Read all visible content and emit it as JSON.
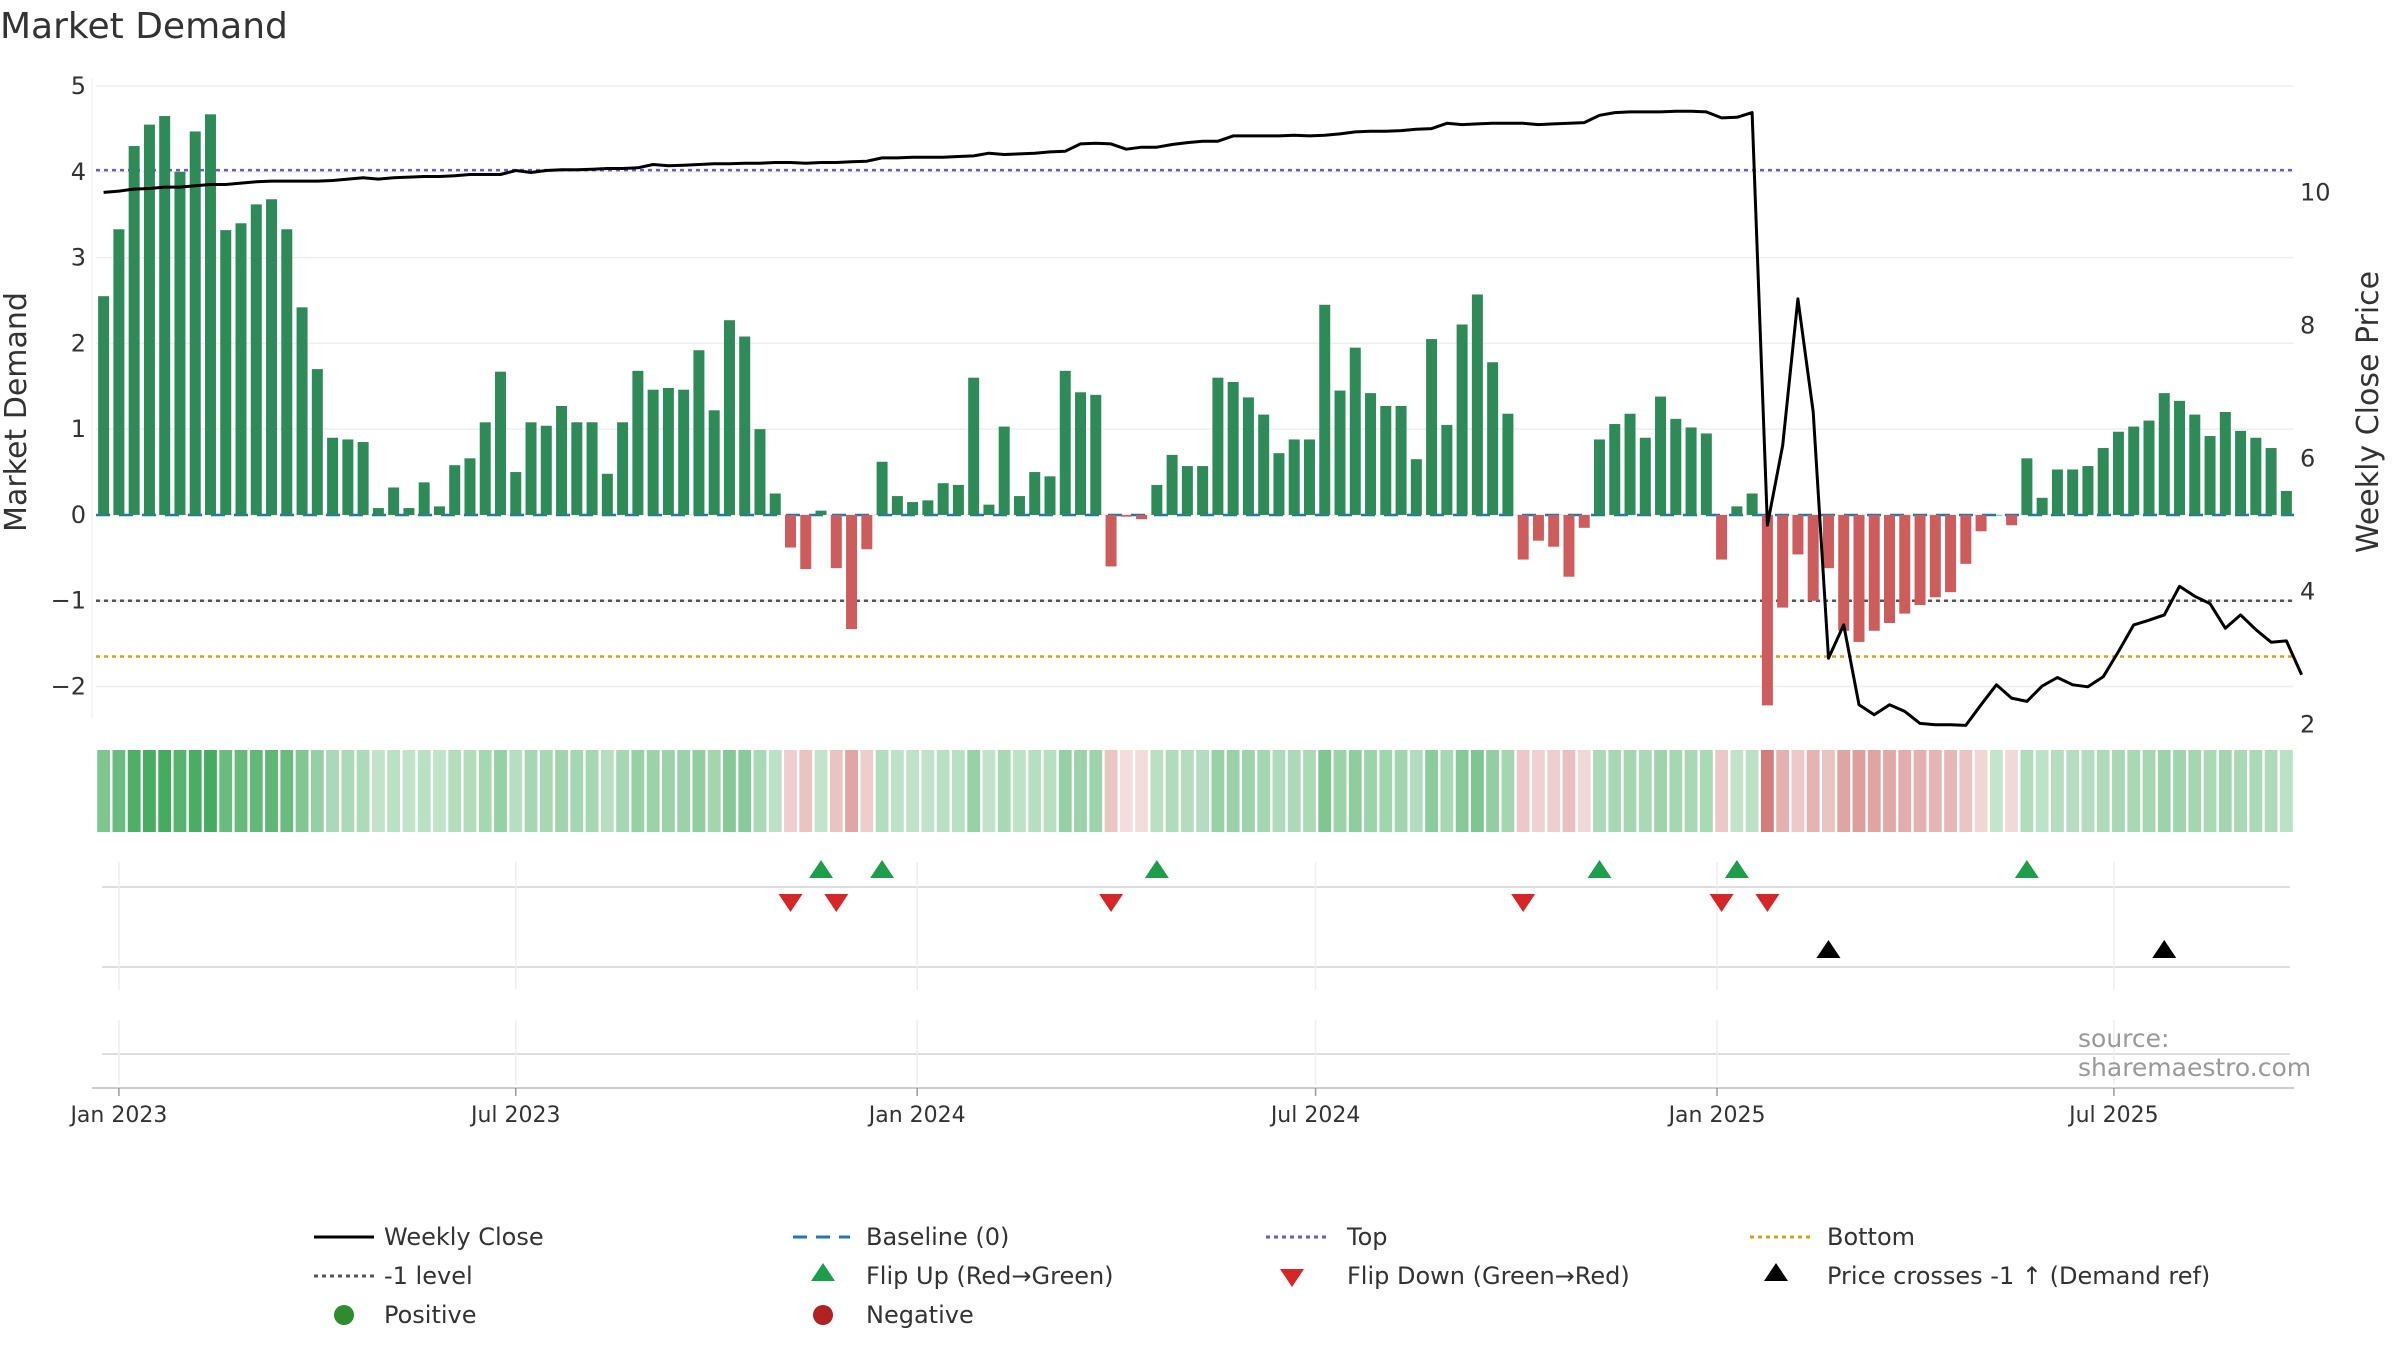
{
  "title": "Market Demand",
  "source": "source: sharemaestro.com",
  "colors": {
    "positive": "#2e8b57",
    "negative": "#cd5c5c",
    "price": "#000000",
    "baseline": "#1f77b4",
    "top": "#6a5acd",
    "minus1": "#555555",
    "bottom": "#d4a017",
    "flip_up": "#1e9e4a",
    "flip_down": "#d62728",
    "cross": "#000000"
  },
  "chart_data": {
    "type": "bar",
    "ylabel": "Market Demand",
    "y2label": "Weekly Close Price",
    "ylim": [
      -2.6,
      5.0
    ],
    "y2lim": [
      1.8,
      11.6
    ],
    "yticks": [
      "5",
      "4",
      "3",
      "2",
      "1",
      "0",
      "−1",
      "−2"
    ],
    "ytick_values": [
      5,
      4,
      3,
      2,
      1,
      0,
      -1,
      -2
    ],
    "y2ticks": [
      "10",
      "8",
      "6",
      "4",
      "2"
    ],
    "y2tick_values": [
      10,
      8,
      6,
      4,
      2
    ],
    "xticks": [
      "Jan 2023",
      "Jul 2023",
      "Jan 2024",
      "Jul 2024",
      "Jan 2025",
      "Jul 2025"
    ],
    "xtick_positions": [
      1.5,
      27.5,
      53.8,
      79.9,
      106.2,
      132.2
    ],
    "levels": {
      "top": 4.02,
      "minus1": -1.0,
      "bottom": -1.65,
      "baseline": 0
    },
    "demand": [
      2.55,
      3.33,
      4.3,
      4.55,
      4.65,
      4.0,
      4.47,
      4.67,
      3.32,
      3.4,
      3.62,
      3.68,
      3.33,
      2.42,
      1.7,
      0.9,
      0.88,
      0.85,
      0.08,
      0.32,
      0.08,
      0.38,
      0.1,
      0.58,
      0.66,
      1.08,
      1.67,
      0.5,
      1.08,
      1.04,
      1.27,
      1.08,
      1.08,
      0.48,
      1.08,
      1.68,
      1.46,
      1.48,
      1.46,
      1.92,
      1.22,
      2.27,
      2.08,
      1.0,
      0.25,
      -0.38,
      -0.63,
      0.05,
      -0.62,
      -1.33,
      -0.4,
      0.62,
      0.22,
      0.15,
      0.17,
      0.37,
      0.35,
      1.6,
      0.12,
      1.03,
      0.22,
      0.5,
      0.45,
      1.68,
      1.43,
      1.4,
      -0.6,
      -0.02,
      -0.05,
      0.35,
      0.7,
      0.57,
      0.57,
      1.6,
      1.55,
      1.37,
      1.17,
      0.72,
      0.88,
      0.88,
      2.45,
      1.45,
      1.95,
      1.42,
      1.27,
      1.27,
      0.65,
      2.05,
      1.05,
      2.22,
      2.57,
      1.78,
      1.18,
      -0.52,
      -0.3,
      -0.37,
      -0.72,
      -0.15,
      0.88,
      1.06,
      1.18,
      0.9,
      1.38,
      1.12,
      1.02,
      0.95,
      -0.52,
      0.1,
      0.25,
      -2.22,
      -1.08,
      -0.46,
      -1.0,
      -0.62,
      -1.35,
      -1.48,
      -1.35,
      -1.26,
      -1.15,
      -1.05,
      -0.96,
      -0.9,
      -0.57,
      -0.19,
      0.0,
      -0.12,
      0.66,
      0.2,
      0.53,
      0.53,
      0.57,
      0.78,
      0.97,
      1.03,
      1.1,
      1.42,
      1.33,
      1.17,
      0.92,
      1.2,
      0.98,
      0.9,
      0.78,
      0.28
    ],
    "price": [
      10.0,
      10.02,
      10.05,
      10.06,
      10.08,
      10.08,
      10.1,
      10.12,
      10.12,
      10.14,
      10.16,
      10.17,
      10.17,
      10.17,
      10.17,
      10.18,
      10.2,
      10.22,
      10.2,
      10.22,
      10.23,
      10.24,
      10.24,
      10.25,
      10.27,
      10.27,
      10.27,
      10.33,
      10.3,
      10.33,
      10.34,
      10.34,
      10.35,
      10.36,
      10.36,
      10.37,
      10.42,
      10.4,
      10.41,
      10.42,
      10.43,
      10.43,
      10.44,
      10.44,
      10.45,
      10.45,
      10.44,
      10.45,
      10.45,
      10.46,
      10.47,
      10.52,
      10.52,
      10.53,
      10.53,
      10.53,
      10.54,
      10.55,
      10.59,
      10.57,
      10.58,
      10.59,
      10.61,
      10.62,
      10.73,
      10.74,
      10.73,
      10.65,
      10.68,
      10.68,
      10.72,
      10.75,
      10.77,
      10.77,
      10.85,
      10.85,
      10.85,
      10.85,
      10.86,
      10.85,
      10.86,
      10.88,
      10.91,
      10.92,
      10.92,
      10.93,
      10.95,
      10.96,
      11.04,
      11.02,
      11.03,
      11.04,
      11.04,
      11.04,
      11.02,
      11.03,
      11.04,
      11.05,
      11.16,
      11.2,
      11.21,
      11.21,
      11.21,
      11.22,
      11.22,
      11.21,
      11.12,
      11.13,
      11.2,
      5.0,
      6.2,
      8.4,
      6.7,
      3.0,
      3.5,
      2.3,
      2.15,
      2.3,
      2.2,
      2.02,
      2.0,
      2.0,
      1.99,
      2.3,
      2.6,
      2.4,
      2.35,
      2.58,
      2.71,
      2.6,
      2.57,
      2.72,
      3.1,
      3.5,
      3.57,
      3.65,
      4.08,
      3.93,
      3.82,
      3.45,
      3.65,
      3.43,
      3.24,
      3.26,
      2.75
    ]
  },
  "markers": {
    "flip_up": [
      47,
      51,
      69,
      98,
      107,
      126
    ],
    "flip_down": [
      45,
      48,
      66,
      93,
      106,
      109
    ],
    "price_cross": [
      113,
      135
    ]
  },
  "legend": [
    {
      "label": "Weekly Close",
      "icon": "solid-line"
    },
    {
      "label": "Baseline (0)",
      "icon": "dashed-line"
    },
    {
      "label": "Top",
      "icon": "dotted-line-purple"
    },
    {
      "label": "Bottom",
      "icon": "dotted-line-orange"
    },
    {
      "label": "-1 level",
      "icon": "dotted-line-gray"
    },
    {
      "label": "Flip Up (Red→Green)",
      "icon": "triangle-up-green"
    },
    {
      "label": "Flip Down (Green→Red)",
      "icon": "triangle-down-red"
    },
    {
      "label": "Price crosses -1 ↑ (Demand ref)",
      "icon": "triangle-up-black"
    },
    {
      "label": "Positive",
      "icon": "circle-green"
    },
    {
      "label": "Negative",
      "icon": "circle-red"
    }
  ]
}
